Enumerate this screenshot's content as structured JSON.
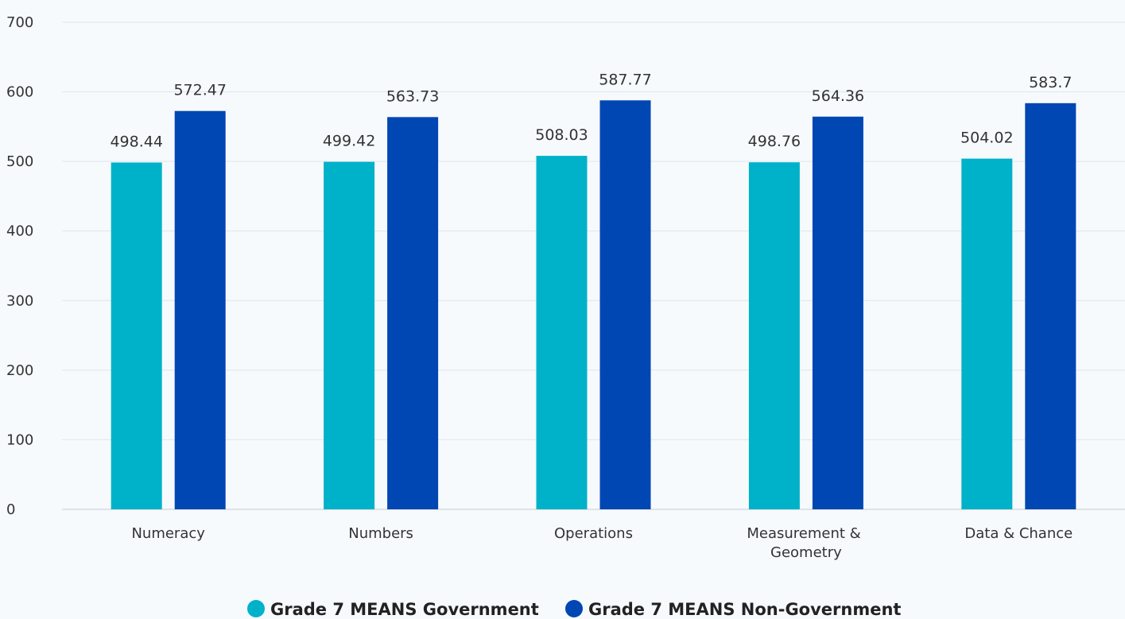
{
  "chart_data": {
    "type": "bar",
    "categories": [
      "Numeracy",
      "Numbers",
      "Operations",
      "Measurement & Geometry",
      "Data & Chance"
    ],
    "series": [
      {
        "name": "Grade 7 MEANS Government",
        "color": "#00b2c9",
        "values": [
          498.44,
          499.42,
          508.03,
          498.76,
          504.02
        ]
      },
      {
        "name": "Grade 7 MEANS Non-Government",
        "color": "#0047b3",
        "values": [
          572.47,
          563.73,
          587.77,
          564.36,
          583.7
        ]
      }
    ],
    "ylim": [
      0,
      700
    ],
    "yticks": [
      0,
      100,
      200,
      300,
      400,
      500,
      600,
      700
    ],
    "grid": true,
    "legend": "bottom"
  }
}
